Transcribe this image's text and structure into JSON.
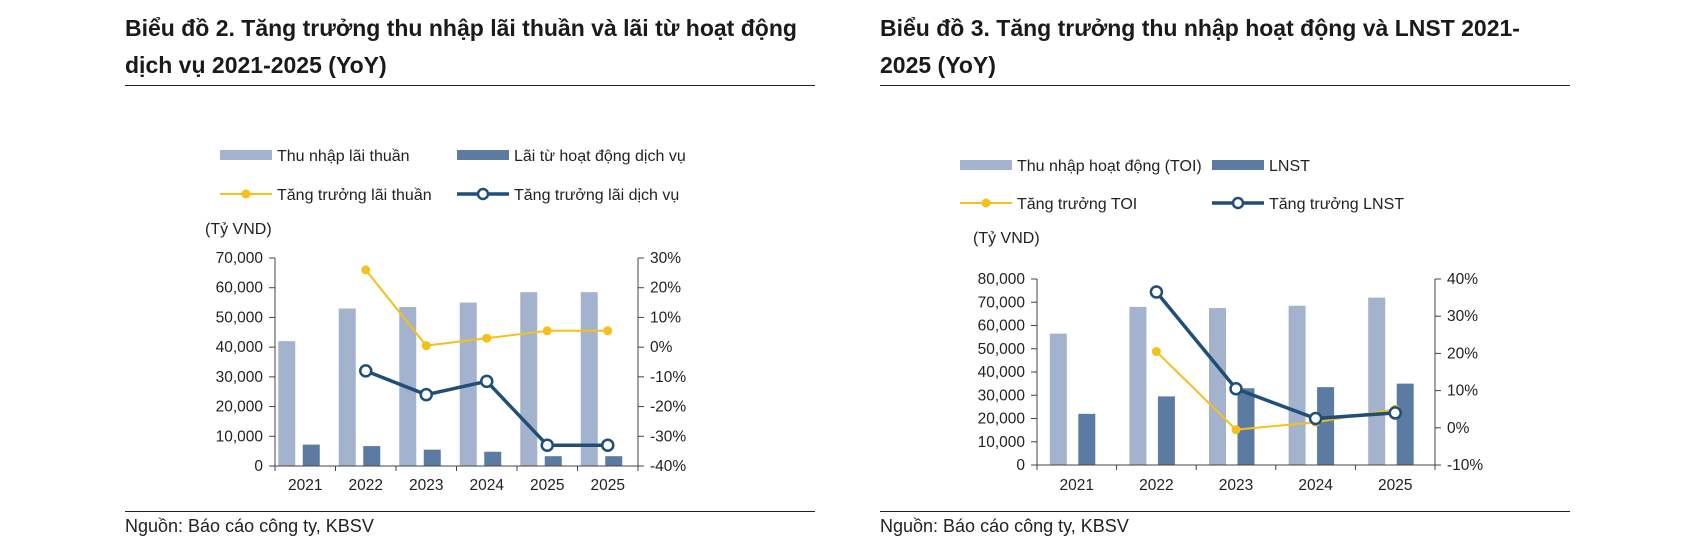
{
  "left": {
    "title": "Biểu đồ 2. Tăng trưởng thu nhập lãi thuần và lãi từ hoạt động dịch vụ 2021-2025 (YoY)",
    "source": "Nguồn: Báo cáo công ty, KBSV"
  },
  "right": {
    "title": "Biểu đồ 3. Tăng trưởng thu nhập hoạt động và LNST 2021-2025 (YoY)",
    "source": "Nguồn: Báo cáo công ty, KBSV"
  },
  "colors": {
    "bar_light": "#a3b3cd",
    "bar_dark": "#5b7ba3",
    "line_yellow": "#f5c018",
    "line_navy": "#1f4e79"
  },
  "chart_data": [
    {
      "type": "bar",
      "unit_label": "(Tỷ VND)",
      "categories": [
        "2021",
        "2022",
        "2023",
        "2024",
        "2025",
        "2025"
      ],
      "ylim": [
        0,
        70000
      ],
      "yticks": [
        "0",
        "10,000",
        "20,000",
        "30,000",
        "40,000",
        "50,000",
        "60,000",
        "70,000"
      ],
      "y2lim": [
        -40,
        30
      ],
      "y2ticks": [
        "-40%",
        "-30%",
        "-20%",
        "-10%",
        "0%",
        "10%",
        "20%",
        "30%"
      ],
      "series": [
        {
          "name": "Thu nhập lãi thuần",
          "kind": "bar",
          "axis": "left",
          "color": "#a3b3cd",
          "values": [
            42000,
            53000,
            53500,
            55000,
            58500,
            58500
          ]
        },
        {
          "name": "Lãi từ hoạt động dịch vụ",
          "kind": "bar",
          "axis": "left",
          "color": "#5b7ba3",
          "values": [
            7200,
            6700,
            5500,
            4800,
            3300,
            3300
          ]
        },
        {
          "name": "Tăng trưởng lãi thuần",
          "kind": "line",
          "axis": "right",
          "color": "#f5c018",
          "values": [
            null,
            26,
            0.5,
            3,
            5.5,
            5.5
          ]
        },
        {
          "name": "Tăng trưởng lãi dịch vụ",
          "kind": "line",
          "axis": "right",
          "color": "#1f4e79",
          "values": [
            null,
            -8,
            -16,
            -11.5,
            -33,
            -33
          ]
        }
      ]
    },
    {
      "type": "bar",
      "unit_label": "(Tỷ VND)",
      "categories": [
        "2021",
        "2022",
        "2023",
        "2024",
        "2025"
      ],
      "ylim": [
        0,
        80000
      ],
      "yticks": [
        "0",
        "10,000",
        "20,000",
        "30,000",
        "40,000",
        "50,000",
        "60,000",
        "70,000",
        "80,000"
      ],
      "y2lim": [
        -10,
        40
      ],
      "y2ticks": [
        "-10%",
        "0%",
        "10%",
        "20%",
        "30%",
        "40%"
      ],
      "series": [
        {
          "name": "Thu nhập hoạt động (TOI)",
          "kind": "bar",
          "axis": "left",
          "color": "#a3b3cd",
          "values": [
            56500,
            68000,
            67500,
            68500,
            72000
          ]
        },
        {
          "name": "LNST",
          "kind": "bar",
          "axis": "left",
          "color": "#5b7ba3",
          "values": [
            22000,
            29500,
            33000,
            33500,
            35000
          ]
        },
        {
          "name": "Tăng trưởng TOI",
          "kind": "line",
          "axis": "right",
          "color": "#f5c018",
          "values": [
            null,
            20.5,
            -0.5,
            1.5,
            5
          ]
        },
        {
          "name": "Tăng trưởng LNST",
          "kind": "line",
          "axis": "right",
          "color": "#1f4e79",
          "values": [
            null,
            36.5,
            10.5,
            2.5,
            4
          ]
        }
      ]
    }
  ]
}
